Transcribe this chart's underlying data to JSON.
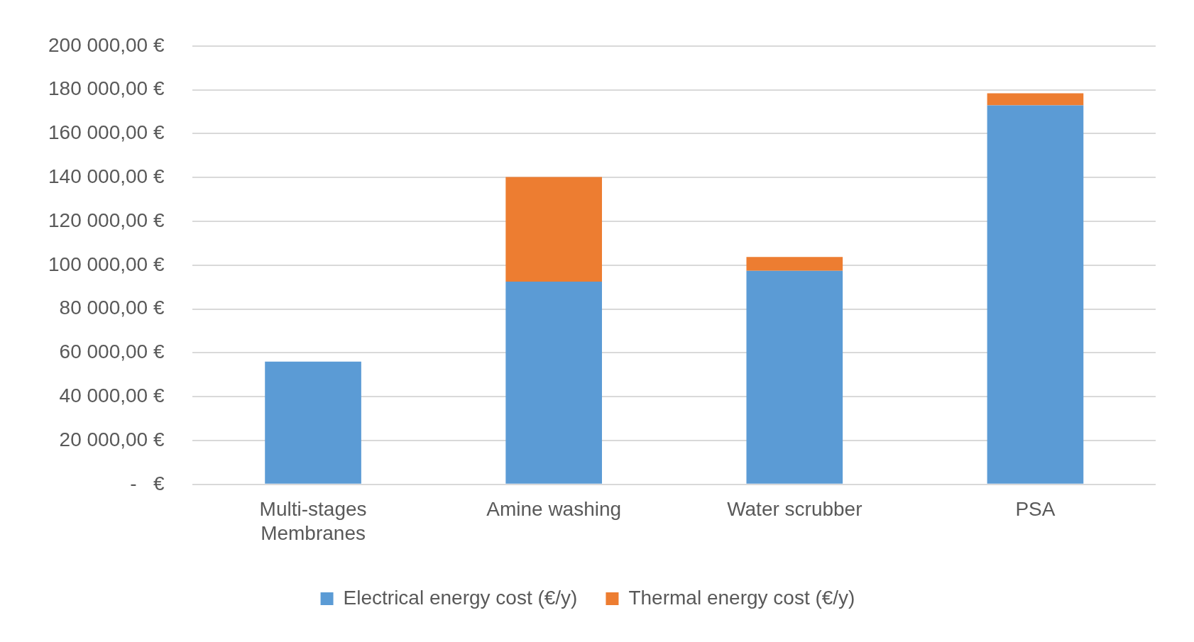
{
  "chart_data": {
    "type": "bar",
    "stacked": true,
    "categories": [
      "Multi-stages Membranes",
      "Amine washing",
      "Water scrubber",
      "PSA"
    ],
    "series": [
      {
        "name": "Electrical energy cost (€/y)",
        "color": "#5b9bd5",
        "values": [
          56000,
          92500,
          97400,
          172900
        ]
      },
      {
        "name": "Thermal energy cost (€/y)",
        "color": "#ed7d31",
        "values": [
          0,
          47700,
          6300,
          5500
        ]
      }
    ],
    "ylim": [
      0,
      200000
    ],
    "yticks": [
      {
        "value": 0,
        "label": "-   €"
      },
      {
        "value": 20000,
        "label": "20 000,00 €"
      },
      {
        "value": 40000,
        "label": "40 000,00 €"
      },
      {
        "value": 60000,
        "label": "60 000,00 €"
      },
      {
        "value": 80000,
        "label": "80 000,00 €"
      },
      {
        "value": 100000,
        "label": "100 000,00 €"
      },
      {
        "value": 120000,
        "label": "120 000,00 €"
      },
      {
        "value": 140000,
        "label": "140 000,00 €"
      },
      {
        "value": 160000,
        "label": "160 000,00 €"
      },
      {
        "value": 180000,
        "label": "180 000,00 €"
      },
      {
        "value": 200000,
        "label": "200 000,00 €"
      }
    ],
    "grid": "y",
    "legend": "bottom"
  }
}
